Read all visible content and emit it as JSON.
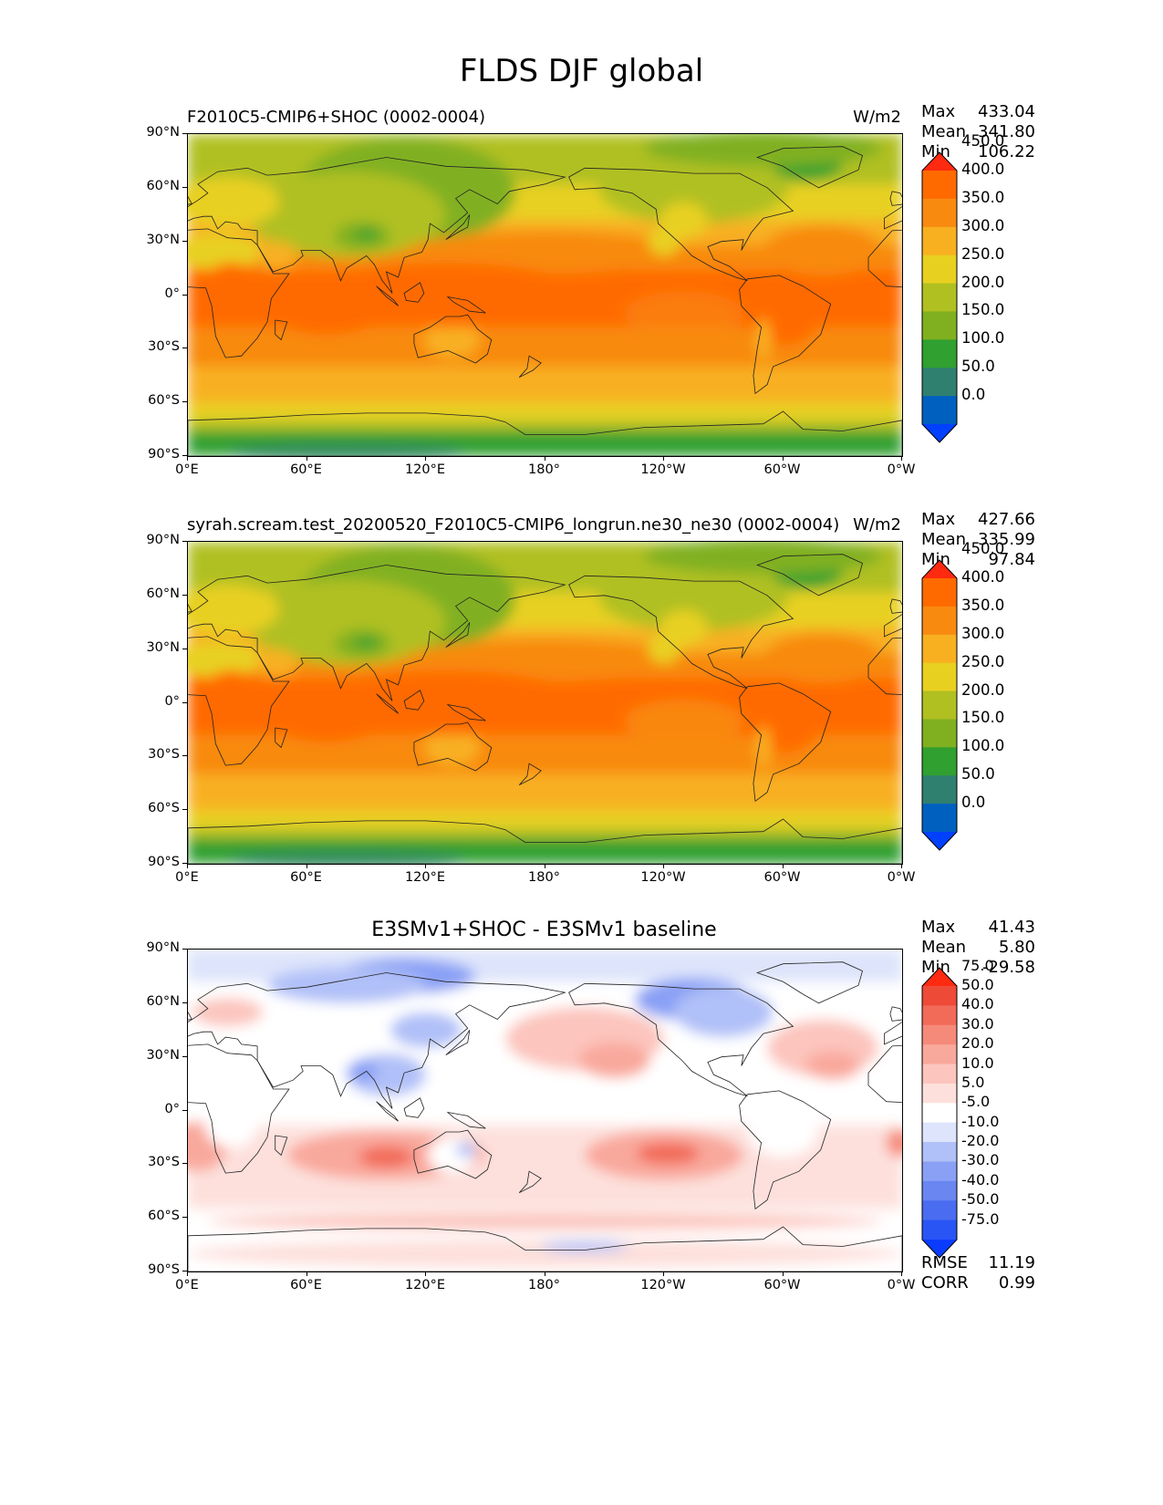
{
  "suptitle": "FLDS DJF global",
  "panels": [
    {
      "title": "F2010C5-CMIP6+SHOC (0002-0004)",
      "units": "W/m2",
      "stats": [
        {
          "label": "Max",
          "value": "433.04"
        },
        {
          "label": "Mean",
          "value": "341.80"
        },
        {
          "label": "Min",
          "value": "106.22"
        }
      ]
    },
    {
      "title": "syrah.scream.test_20200520_F2010C5-CMIP6_longrun.ne30_ne30 (0002-0004)",
      "units": "W/m2",
      "stats": [
        {
          "label": "Max",
          "value": "427.66"
        },
        {
          "label": "Mean",
          "value": "335.99"
        },
        {
          "label": "Min",
          "value": "97.84"
        }
      ]
    },
    {
      "title": "E3SMv1+SHOC - E3SMv1 baseline",
      "stats": [
        {
          "label": "Max",
          "value": "41.43"
        },
        {
          "label": "Mean",
          "value": "5.80"
        },
        {
          "label": "Min",
          "value": "-29.58"
        }
      ],
      "extra_stats": [
        {
          "label": "RMSE",
          "value": "11.19"
        },
        {
          "label": "CORR",
          "value": "0.99"
        }
      ]
    }
  ],
  "axes": {
    "lat_ticks": [
      "90°N",
      "60°N",
      "30°N",
      "0°",
      "30°S",
      "60°S",
      "90°S"
    ],
    "lon_ticks": [
      "0°E",
      "60°E",
      "120°E",
      "180°",
      "120°W",
      "60°W",
      "0°W"
    ]
  },
  "chart_data": [
    {
      "type": "heatmap",
      "title": "F2010C5-CMIP6+SHOC (0002-0004)",
      "units": "W/m2",
      "levels": [
        "0.0",
        "50.0",
        "100.0",
        "150.0",
        "200.0",
        "250.0",
        "300.0",
        "350.0",
        "400.0",
        "450.0"
      ],
      "colors": [
        "#0040ff",
        "#0060c0",
        "#308070",
        "#30a030",
        "#80b020",
        "#b0c020",
        "#e8d020",
        "#f8b020",
        "#f88a10",
        "#ff6a00",
        "#ff2a10"
      ],
      "xrange": [
        0,
        360
      ],
      "yrange": [
        -90,
        90
      ],
      "stats": {
        "max": 433.04,
        "mean": 341.8,
        "min": 106.22
      }
    },
    {
      "type": "heatmap",
      "title": "syrah.scream.test_20200520_F2010C5-CMIP6_longrun.ne30_ne30 (0002-0004)",
      "units": "W/m2",
      "levels": [
        "0.0",
        "50.0",
        "100.0",
        "150.0",
        "200.0",
        "250.0",
        "300.0",
        "350.0",
        "400.0",
        "450.0"
      ],
      "colors": [
        "#0040ff",
        "#0060c0",
        "#308070",
        "#30a030",
        "#80b020",
        "#b0c020",
        "#e8d020",
        "#f8b020",
        "#f88a10",
        "#ff6a00",
        "#ff2a10"
      ],
      "xrange": [
        0,
        360
      ],
      "yrange": [
        -90,
        90
      ],
      "stats": {
        "max": 427.66,
        "mean": 335.99,
        "min": 97.84
      }
    },
    {
      "type": "heatmap",
      "title": "E3SMv1+SHOC - E3SMv1 baseline",
      "levels": [
        "-75.0",
        "-50.0",
        "-40.0",
        "-30.0",
        "-20.0",
        "-10.0",
        "-5.0",
        "5.0",
        "10.0",
        "20.0",
        "30.0",
        "40.0",
        "50.0",
        "75.0"
      ],
      "colors": [
        "#0a3cff",
        "#2a55f5",
        "#4a6cf0",
        "#6a86f0",
        "#8aa0f5",
        "#b0c0f8",
        "#dde4fb",
        "#ffffff",
        "#fde0dc",
        "#fcc5bd",
        "#f9a89c",
        "#f68a7a",
        "#f26a58",
        "#ee4a38",
        "#ff2a10"
      ],
      "xrange": [
        0,
        360
      ],
      "yrange": [
        -90,
        90
      ],
      "stats": {
        "max": 41.43,
        "mean": 5.8,
        "min": -29.58,
        "rmse": 11.19,
        "corr": 0.99
      }
    }
  ]
}
